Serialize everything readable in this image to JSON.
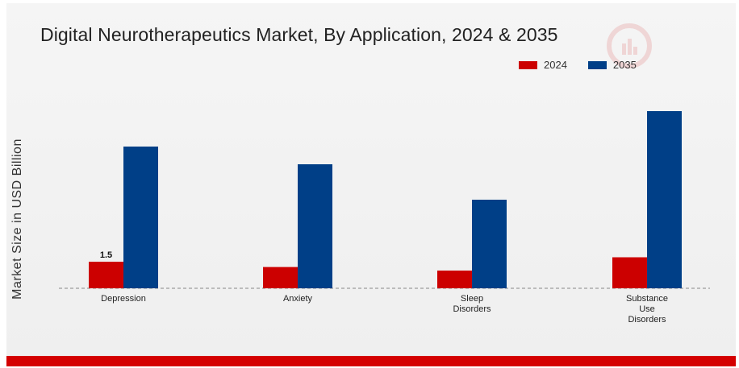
{
  "chart_data": {
    "type": "bar",
    "title": "Digital Neurotherapeutics Market, By Application, 2024 & 2035",
    "ylabel": "Market Size in USD Billion",
    "xlabel": "",
    "categories": [
      [
        "Depression"
      ],
      [
        "Anxiety"
      ],
      [
        "Sleep",
        "Disorders"
      ],
      [
        "Substance",
        "Use",
        "Disorders"
      ]
    ],
    "series": [
      {
        "name": "2024",
        "color": "#cc0000",
        "values": [
          1.5,
          1.2,
          1.0,
          1.75
        ]
      },
      {
        "name": "2035",
        "color": "#003f87",
        "values": [
          8.0,
          7.0,
          5.0,
          10.0
        ]
      }
    ],
    "data_labels": [
      {
        "series": 0,
        "index": 0,
        "text": "1.5"
      }
    ],
    "ylim": [
      0,
      12
    ],
    "grid": false,
    "legend_position": "top-right"
  }
}
